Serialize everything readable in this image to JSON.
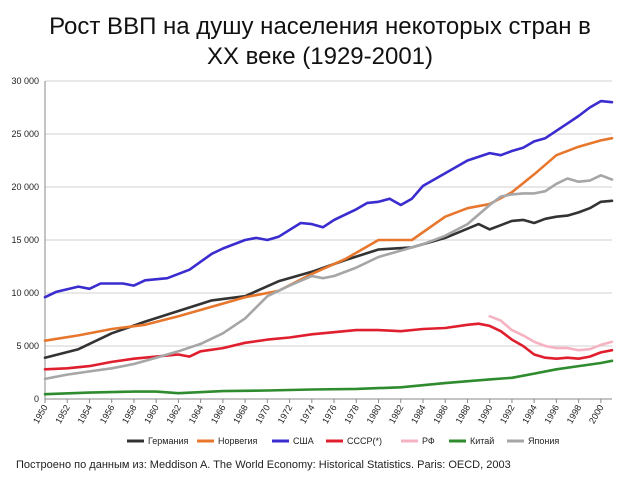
{
  "chart_data": {
    "type": "line",
    "title": "Рост ВВП на душу населения некоторых стран в\nXX веке (1929-2001)",
    "xlabel": "",
    "ylabel": "",
    "ylim": [
      0,
      30000
    ],
    "yticks": [
      0,
      5000,
      10000,
      15000,
      20000,
      25000,
      30000
    ],
    "ytick_labels": [
      "0",
      "5 000",
      "10 000",
      "15 000",
      "20 000",
      "25 000",
      "30 000"
    ],
    "xlim": [
      1950,
      2001
    ],
    "xtick_labels": [
      "1950",
      "1952",
      "1954",
      "1956",
      "1958",
      "1960",
      "1962",
      "1964",
      "1966",
      "1968",
      "1970",
      "1972",
      "1974",
      "1976",
      "1978",
      "1980",
      "1982",
      "1984",
      "1986",
      "1988",
      "1990",
      "1992",
      "1994",
      "1996",
      "1998",
      "2000"
    ],
    "grid": true,
    "legend_position": "bottom",
    "series": [
      {
        "name": "Германия",
        "color": "#333333",
        "x": [
          1950,
          1953,
          1956,
          1959,
          1962,
          1965,
          1968,
          1971,
          1974,
          1977,
          1980,
          1983,
          1986,
          1989,
          1990,
          1991,
          1992,
          1993,
          1994,
          1995,
          1996,
          1997,
          1998,
          1999,
          2000,
          2001
        ],
        "y": [
          3900,
          4700,
          6200,
          7300,
          8300,
          9300,
          9700,
          11100,
          12000,
          13100,
          14100,
          14300,
          15200,
          16500,
          16000,
          16400,
          16800,
          16900,
          16600,
          17000,
          17200,
          17300,
          17600,
          18000,
          18600,
          18700
        ]
      },
      {
        "name": "Норвегия",
        "color": "#E8772E",
        "x": [
          1950,
          1953,
          1956,
          1959,
          1962,
          1965,
          1968,
          1971,
          1974,
          1977,
          1980,
          1983,
          1986,
          1988,
          1990,
          1992,
          1994,
          1996,
          1998,
          2000,
          2001
        ],
        "y": [
          5500,
          6000,
          6600,
          7000,
          7800,
          8700,
          9600,
          10200,
          11800,
          13200,
          15000,
          15000,
          17200,
          18000,
          18400,
          19500,
          21200,
          23000,
          23800,
          24400,
          24600
        ]
      },
      {
        "name": "США",
        "color": "#3A2CCF",
        "x": [
          1950,
          1951,
          1953,
          1954,
          1955,
          1957,
          1958,
          1959,
          1961,
          1963,
          1965,
          1966,
          1968,
          1969,
          1970,
          1971,
          1973,
          1974,
          1975,
          1976,
          1978,
          1979,
          1980,
          1981,
          1982,
          1983,
          1984,
          1986,
          1988,
          1990,
          1991,
          1992,
          1993,
          1994,
          1995,
          1996,
          1997,
          1998,
          1999,
          2000,
          2001
        ],
        "y": [
          9600,
          10100,
          10600,
          10400,
          10900,
          10900,
          10700,
          11200,
          11400,
          12200,
          13700,
          14200,
          15000,
          15200,
          15000,
          15300,
          16600,
          16500,
          16200,
          16900,
          17900,
          18500,
          18600,
          18900,
          18300,
          18900,
          20100,
          21300,
          22500,
          23200,
          23000,
          23400,
          23700,
          24300,
          24600,
          25300,
          26000,
          26700,
          27500,
          28100,
          28000
        ]
      },
      {
        "name": "СССР(*)",
        "color": "#E01F2E",
        "x": [
          1950,
          1952,
          1954,
          1956,
          1958,
          1960,
          1962,
          1963,
          1964,
          1966,
          1968,
          1970,
          1972,
          1974,
          1976,
          1978,
          1980,
          1982,
          1984,
          1986,
          1988,
          1989,
          1990,
          1991,
          1992,
          1993,
          1994,
          1995,
          1996,
          1997,
          1998,
          1999,
          2000,
          2001
        ],
        "y": [
          2800,
          2900,
          3100,
          3500,
          3800,
          4000,
          4200,
          4000,
          4500,
          4800,
          5300,
          5600,
          5800,
          6100,
          6300,
          6500,
          6500,
          6400,
          6600,
          6700,
          7000,
          7100,
          6900,
          6400,
          5600,
          5000,
          4200,
          3900,
          3800,
          3900,
          3800,
          4000,
          4400,
          4600
        ]
      },
      {
        "name": "РФ",
        "color": "#F5B3C2",
        "x": [
          1990,
          1991,
          1992,
          1993,
          1994,
          1995,
          1996,
          1997,
          1998,
          1999,
          2000,
          2001
        ],
        "y": [
          7800,
          7400,
          6500,
          6000,
          5400,
          5000,
          4800,
          4800,
          4600,
          4700,
          5100,
          5400
        ]
      },
      {
        "name": "Китай",
        "color": "#2E8B2E",
        "x": [
          1950,
          1954,
          1958,
          1960,
          1962,
          1966,
          1970,
          1974,
          1978,
          1982,
          1986,
          1990,
          1992,
          1994,
          1996,
          1998,
          2000,
          2001
        ],
        "y": [
          450,
          600,
          700,
          700,
          550,
          750,
          800,
          900,
          950,
          1100,
          1500,
          1850,
          2000,
          2400,
          2800,
          3100,
          3400,
          3600
        ]
      },
      {
        "name": "Япония",
        "color": "#A6A6A6",
        "x": [
          1950,
          1952,
          1954,
          1956,
          1958,
          1960,
          1962,
          1964,
          1966,
          1968,
          1970,
          1972,
          1974,
          1975,
          1976,
          1978,
          1980,
          1982,
          1984,
          1986,
          1988,
          1990,
          1991,
          1992,
          1993,
          1994,
          1995,
          1996,
          1997,
          1998,
          1999,
          2000,
          2001
        ],
        "y": [
          1900,
          2300,
          2600,
          2900,
          3300,
          3900,
          4500,
          5200,
          6200,
          7600,
          9700,
          10700,
          11600,
          11400,
          11600,
          12400,
          13400,
          14000,
          14600,
          15400,
          16500,
          18300,
          19100,
          19300,
          19400,
          19400,
          19600,
          20300,
          20800,
          20500,
          20600,
          21100,
          20700
        ]
      }
    ]
  },
  "source_note": "Построено по данным из: Meddison A. The World Economy: Historical Statistics. Paris: OECD, 2003"
}
